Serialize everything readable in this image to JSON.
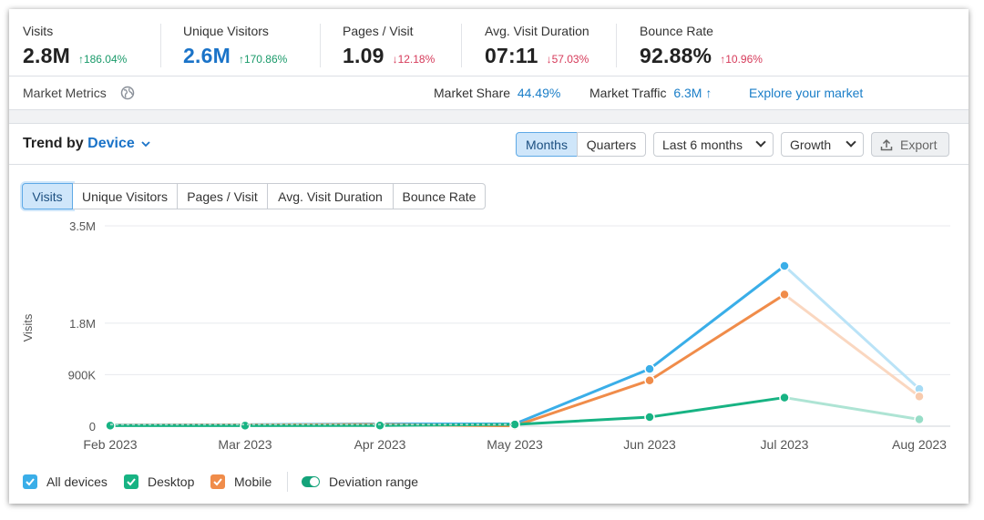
{
  "metrics": [
    {
      "label": "Visits",
      "value": "2.8M",
      "delta": "↑186.04%",
      "delta_dir": "up"
    },
    {
      "label": "Unique Visitors",
      "value": "2.6M",
      "delta": "↑170.86%",
      "delta_dir": "up"
    },
    {
      "label": "Pages / Visit",
      "value": "1.09",
      "delta": "↓12.18%",
      "delta_dir": "down"
    },
    {
      "label": "Avg. Visit Duration",
      "value": "07:11",
      "delta": "↓57.03%",
      "delta_dir": "down"
    },
    {
      "label": "Bounce Rate",
      "value": "92.88%",
      "delta": "↑10.96%",
      "delta_dir": "up"
    }
  ],
  "market": {
    "label": "Market Metrics",
    "share_label": "Market Share",
    "share_value": "44.49%",
    "traffic_label": "Market Traffic",
    "traffic_value": "6.3M ↑",
    "explore": "Explore your market"
  },
  "trend": {
    "title_prefix": "Trend by",
    "dimension": "Device",
    "granularity": [
      "Months",
      "Quarters"
    ],
    "granularity_selected": "Months",
    "period": "Last 6 months",
    "mode": "Growth",
    "export": "Export"
  },
  "tabs": [
    "Visits",
    "Unique Visitors",
    "Pages / Visit",
    "Avg. Visit Duration",
    "Bounce Rate"
  ],
  "tab_selected": "Visits",
  "legend": {
    "all": "All devices",
    "desktop": "Desktop",
    "mobile": "Mobile",
    "deviation": "Deviation range"
  },
  "colors": {
    "all": "#3aaee8",
    "desktop": "#17b383",
    "mobile": "#f08c4a",
    "accent": "#1a73c8"
  },
  "chart_data": {
    "type": "line",
    "ylabel": "Visits",
    "y_ticks": [
      "3.5M",
      "1.8M",
      "900K",
      "0"
    ],
    "y_tick_values": [
      3500000,
      1800000,
      900000,
      0
    ],
    "categories": [
      "Feb 2023",
      "Mar 2023",
      "Apr 2023",
      "May 2023",
      "Jun 2023",
      "Jul 2023",
      "Aug 2023"
    ],
    "series": [
      {
        "name": "All devices",
        "values": [
          20000,
          25000,
          40000,
          40000,
          1000000,
          2800000,
          650000
        ]
      },
      {
        "name": "Mobile",
        "values": [
          15000,
          20000,
          30000,
          5000,
          800000,
          2300000,
          520000
        ]
      },
      {
        "name": "Desktop",
        "values": [
          10000,
          10000,
          12000,
          30000,
          160000,
          500000,
          120000
        ]
      }
    ],
    "partial_last_period": true
  }
}
